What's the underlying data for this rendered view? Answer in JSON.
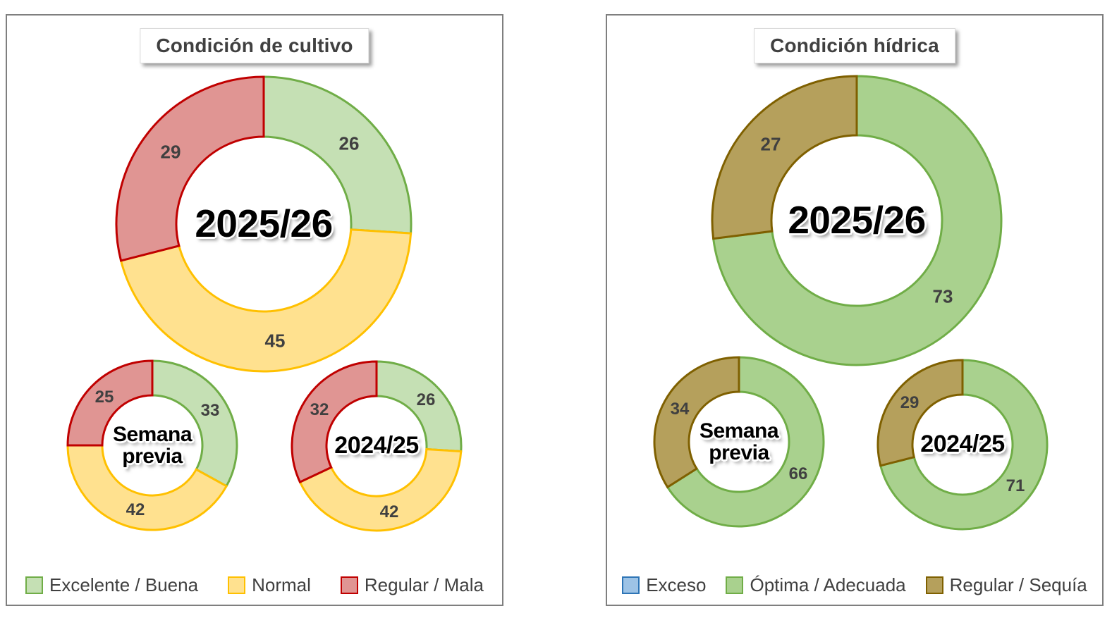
{
  "chart_data": [
    {
      "type": "donut-group",
      "title": "Condición de cultivo",
      "legend_position": "bottom",
      "start_angle": "top",
      "direction": "clockwise",
      "categories": [
        "Excelente / Buena",
        "Normal",
        "Regular / Mala"
      ],
      "colors": {
        "fill": [
          "#c5e0b4",
          "#ffe18f",
          "#e09593"
        ],
        "border": [
          "#70ad47",
          "#ffc000",
          "#c00000"
        ]
      },
      "label_color": "#404040",
      "title_color": "#404040",
      "donuts": [
        {
          "center_label": "2025/26",
          "size": "large",
          "values": [
            26,
            45,
            29
          ]
        },
        {
          "center_label": "Semana previa",
          "size": "small",
          "values": [
            33,
            42,
            25
          ]
        },
        {
          "center_label": "2024/25",
          "size": "small",
          "values": [
            26,
            42,
            32
          ]
        }
      ]
    },
    {
      "type": "donut-group",
      "title": "Condición hídrica",
      "legend_position": "bottom",
      "start_angle": "top",
      "direction": "clockwise",
      "categories": [
        "Exceso",
        "Óptima / Adecuada",
        "Regular / Sequía"
      ],
      "colors": {
        "fill": [
          "#9dc3e6",
          "#a9d18e",
          "#b5a05c"
        ],
        "border": [
          "#2e75b6",
          "#70ad47",
          "#7f6000"
        ]
      },
      "label_color": "#404040",
      "title_color": "#404040",
      "donuts": [
        {
          "center_label": "2025/26",
          "size": "large",
          "values": [
            0,
            73,
            27
          ]
        },
        {
          "center_label": "Semana previa",
          "size": "small",
          "values": [
            0,
            66,
            34
          ]
        },
        {
          "center_label": "2024/25",
          "size": "small",
          "values": [
            0,
            71,
            29
          ]
        }
      ]
    }
  ]
}
